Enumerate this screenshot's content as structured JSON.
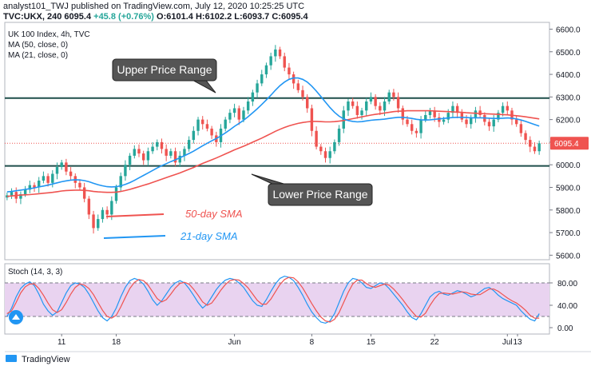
{
  "header": {
    "publish_line": "analyst101_TWJ published on TradingView.com, July 12, 2020 10:25:25 UTC",
    "symbol": "TVC:UKX, 240",
    "last": "6095.4",
    "change": "+45.8 (+0.76%)",
    "ohlc": "O:6101.4 H:6102.2 L:6093.7 C:6095.4"
  },
  "legend": {
    "title": "UK 100 Index, 4h, TVC",
    "ma50": "MA (50, close, 0)",
    "ma21": "MA (21, close, 0)"
  },
  "annotations": {
    "upper": "Upper Price Range",
    "lower": "Lower Price Range",
    "sma50": "50-day SMA",
    "sma21": "21-day SMA"
  },
  "stoch_label": "Stoch (14, 3, 3)",
  "last_price_label": "6095.4",
  "footer": {
    "brand": "TradingView"
  },
  "colors": {
    "up": "#26a69a",
    "down": "#ef5350",
    "ma50": "#ef5350",
    "ma21": "#2196f3",
    "hline": "#1f4e4a",
    "stoch_band": "#e1bee7",
    "stoch_k": "#2196f3",
    "stoch_d": "#ef5350"
  },
  "chart_data": {
    "type": "candlestick",
    "price_axis": {
      "ticks": [
        "6600.0",
        "6500.0",
        "6400.0",
        "6300.0",
        "6200.0",
        "6100.0",
        "6000.0",
        "5900.0",
        "5800.0",
        "5700.0",
        "5600.0"
      ],
      "range": [
        5580,
        6630
      ]
    },
    "time_axis": [
      "11",
      "18",
      "Jun",
      "8",
      "15",
      "22",
      "Jul",
      "13"
    ],
    "levels": {
      "upper": 6295,
      "lower": 5995,
      "last": 6095.4
    },
    "stoch_axis": {
      "ticks": [
        "80.00",
        "40.00",
        "0.00"
      ],
      "band": [
        20,
        80
      ]
    },
    "closes": [
      5865,
      5880,
      5850,
      5870,
      5890,
      5910,
      5900,
      5930,
      5950,
      5920,
      5960,
      5990,
      6010,
      5970,
      5950,
      5920,
      5900,
      5850,
      5780,
      5720,
      5760,
      5800,
      5780,
      5840,
      5900,
      5950,
      6000,
      6040,
      6070,
      6050,
      6020,
      6060,
      6080,
      6100,
      6070,
      6040,
      6060,
      6010,
      6040,
      6070,
      6110,
      6150,
      6200,
      6180,
      6160,
      6130,
      6100,
      6160,
      6200,
      6230,
      6250,
      6200,
      6240,
      6280,
      6320,
      6360,
      6400,
      6440,
      6480,
      6510,
      6480,
      6430,
      6400,
      6360,
      6330,
      6300,
      6250,
      6150,
      6080,
      6060,
      6030,
      6060,
      6100,
      6160,
      6240,
      6280,
      6260,
      6220,
      6240,
      6280,
      6300,
      6260,
      6240,
      6280,
      6320,
      6300,
      6250,
      6200,
      6180,
      6150,
      6140,
      6200,
      6220,
      6240,
      6210,
      6190,
      6200,
      6230,
      6260,
      6230,
      6200,
      6180,
      6210,
      6240,
      6220,
      6190,
      6170,
      6200,
      6230,
      6260,
      6240,
      6200,
      6180,
      6140,
      6110,
      6080,
      6060,
      6095
    ],
    "ma50": [
      5860,
      5862,
      5864,
      5866,
      5867,
      5868,
      5870,
      5872,
      5874,
      5876,
      5878,
      5881,
      5884,
      5886,
      5887,
      5888,
      5888,
      5887,
      5885,
      5882,
      5880,
      5879,
      5878,
      5878,
      5879,
      5882,
      5886,
      5891,
      5897,
      5903,
      5909,
      5915,
      5922,
      5929,
      5936,
      5943,
      5950,
      5957,
      5964,
      5972,
      5980,
      5988,
      5997,
      6006,
      6014,
      6022,
      6030,
      6039,
      6048,
      6057,
      6066,
      6074,
      6082,
      6091,
      6100,
      6109,
      6118,
      6128,
      6138,
      6148,
      6157,
      6165,
      6172,
      6178,
      6183,
      6187,
      6190,
      6192,
      6192,
      6191,
      6190,
      6190,
      6191,
      6193,
      6196,
      6200,
      6204,
      6208,
      6212,
      6216,
      6220,
      6223,
      6226,
      6229,
      6232,
      6235,
      6237,
      6238,
      6239,
      6239,
      6239,
      6239,
      6239,
      6239,
      6238,
      6237,
      6236,
      6235,
      6234,
      6233,
      6232,
      6230,
      6229,
      6228,
      6227,
      6226,
      6225,
      6224,
      6223,
      6222,
      6221,
      6219,
      6217,
      6215,
      6212,
      6209,
      6206,
      6203
    ],
    "ma21": [
      5880,
      5882,
      5885,
      5888,
      5891,
      5894,
      5898,
      5902,
      5906,
      5910,
      5915,
      5920,
      5925,
      5929,
      5932,
      5934,
      5933,
      5930,
      5925,
      5918,
      5912,
      5907,
      5903,
      5902,
      5903,
      5907,
      5913,
      5921,
      5931,
      5942,
      5953,
      5964,
      5975,
      5986,
      5996,
      6005,
      6014,
      6022,
      6031,
      6040,
      6050,
      6060,
      6072,
      6084,
      6095,
      6106,
      6116,
      6128,
      6141,
      6155,
      6170,
      6183,
      6197,
      6213,
      6230,
      6248,
      6267,
      6287,
      6308,
      6330,
      6350,
      6366,
      6378,
      6384,
      6384,
      6378,
      6366,
      6348,
      6326,
      6302,
      6277,
      6253,
      6232,
      6215,
      6203,
      6196,
      6192,
      6190,
      6191,
      6194,
      6197,
      6199,
      6200,
      6202,
      6205,
      6208,
      6210,
      6210,
      6208,
      6205,
      6201,
      6199,
      6198,
      6199,
      6201,
      6203,
      6205,
      6207,
      6209,
      6210,
      6210,
      6209,
      6208,
      6208,
      6208,
      6207,
      6206,
      6205,
      6205,
      6206,
      6207,
      6206,
      6203,
      6198,
      6192,
      6185,
      6178,
      6171
    ],
    "stoch_k": [
      20,
      35,
      55,
      70,
      78,
      82,
      75,
      60,
      42,
      30,
      22,
      28,
      45,
      62,
      75,
      80,
      78,
      72,
      60,
      45,
      30,
      18,
      12,
      20,
      35,
      55,
      72,
      84,
      88,
      85,
      78,
      65,
      50,
      40,
      48,
      60,
      72,
      80,
      84,
      80,
      70,
      58,
      45,
      35,
      42,
      55,
      68,
      78,
      85,
      88,
      86,
      80,
      72,
      60,
      48,
      40,
      38,
      50,
      65,
      78,
      88,
      92,
      90,
      84,
      72,
      58,
      42,
      28,
      18,
      10,
      8,
      12,
      25,
      45,
      65,
      80,
      88,
      86,
      80,
      72,
      70,
      75,
      80,
      78,
      70,
      60,
      50,
      40,
      28,
      18,
      14,
      25,
      40,
      55,
      62,
      65,
      60,
      58,
      62,
      66,
      64,
      60,
      55,
      58,
      64,
      70,
      72,
      66,
      58,
      52,
      48,
      44,
      40,
      30,
      22,
      15,
      12,
      25
    ],
    "stoch_d": [
      25,
      30,
      45,
      62,
      73,
      78,
      78,
      70,
      58,
      44,
      32,
      27,
      32,
      45,
      60,
      72,
      78,
      76,
      70,
      59,
      45,
      31,
      20,
      17,
      22,
      37,
      54,
      70,
      81,
      86,
      84,
      76,
      64,
      52,
      46,
      50,
      60,
      71,
      79,
      81,
      78,
      69,
      58,
      46,
      40,
      44,
      55,
      67,
      77,
      84,
      86,
      85,
      79,
      71,
      60,
      49,
      42,
      42,
      51,
      64,
      77,
      86,
      90,
      89,
      82,
      71,
      57,
      43,
      30,
      19,
      12,
      10,
      15,
      27,
      45,
      63,
      78,
      85,
      85,
      79,
      74,
      72,
      75,
      78,
      76,
      69,
      60,
      50,
      39,
      29,
      20,
      19,
      26,
      40,
      52,
      61,
      62,
      61,
      60,
      62,
      64,
      63,
      60,
      59,
      59,
      64,
      69,
      69,
      65,
      59,
      53,
      48,
      44,
      38,
      31,
      22,
      17,
      17
    ]
  }
}
